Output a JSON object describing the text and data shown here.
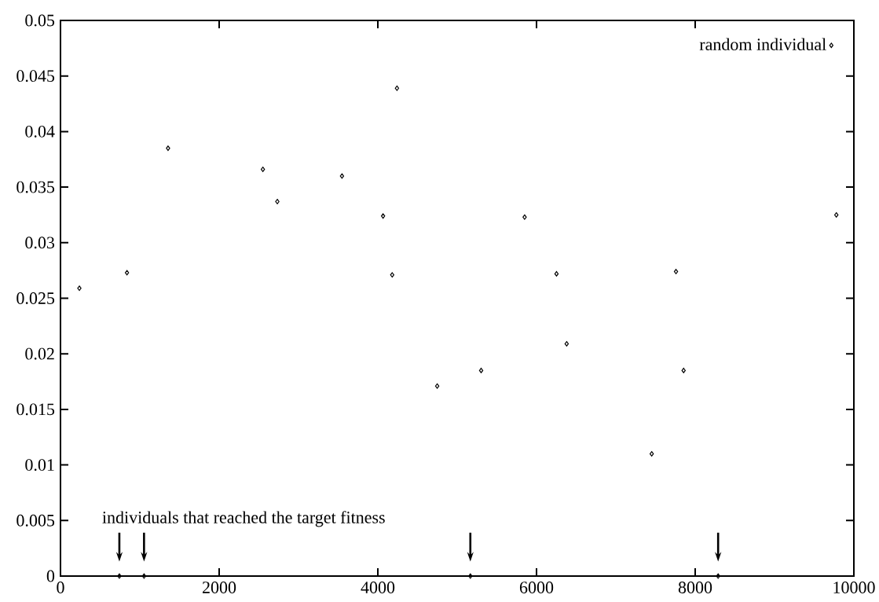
{
  "chart_data": {
    "type": "scatter",
    "x": [
      238,
      742,
      838,
      1053,
      1356,
      2551,
      2733,
      3548,
      4066,
      4181,
      4241,
      4748,
      5166,
      5302,
      5850,
      6252,
      6380,
      7452,
      7758,
      7854,
      8289,
      9779
    ],
    "series": [
      {
        "name": "random individual",
        "color": "#000000",
        "values": [
          0.0259,
          0,
          0.0273,
          0,
          0.0385,
          0.0366,
          0.0337,
          0.036,
          0.0324,
          0.0271,
          0.0439,
          0.0171,
          0,
          0.0185,
          0.0323,
          0.0272,
          0.0209,
          0.011,
          0.0274,
          0.0185,
          0,
          0.0325
        ]
      }
    ],
    "annotations": [
      "individuals that reached the target fitness"
    ],
    "xlim": [
      0,
      10000
    ],
    "xticks": [
      0,
      2000,
      4000,
      6000,
      8000,
      10000
    ],
    "ylim": [
      0,
      0.05
    ],
    "yticks": [
      0,
      0.005,
      0.01,
      0.015,
      0.02,
      0.025,
      0.03,
      0.035,
      0.04,
      0.045,
      0.05
    ],
    "grid": false,
    "legend": "top right",
    "marker": "diamond"
  }
}
